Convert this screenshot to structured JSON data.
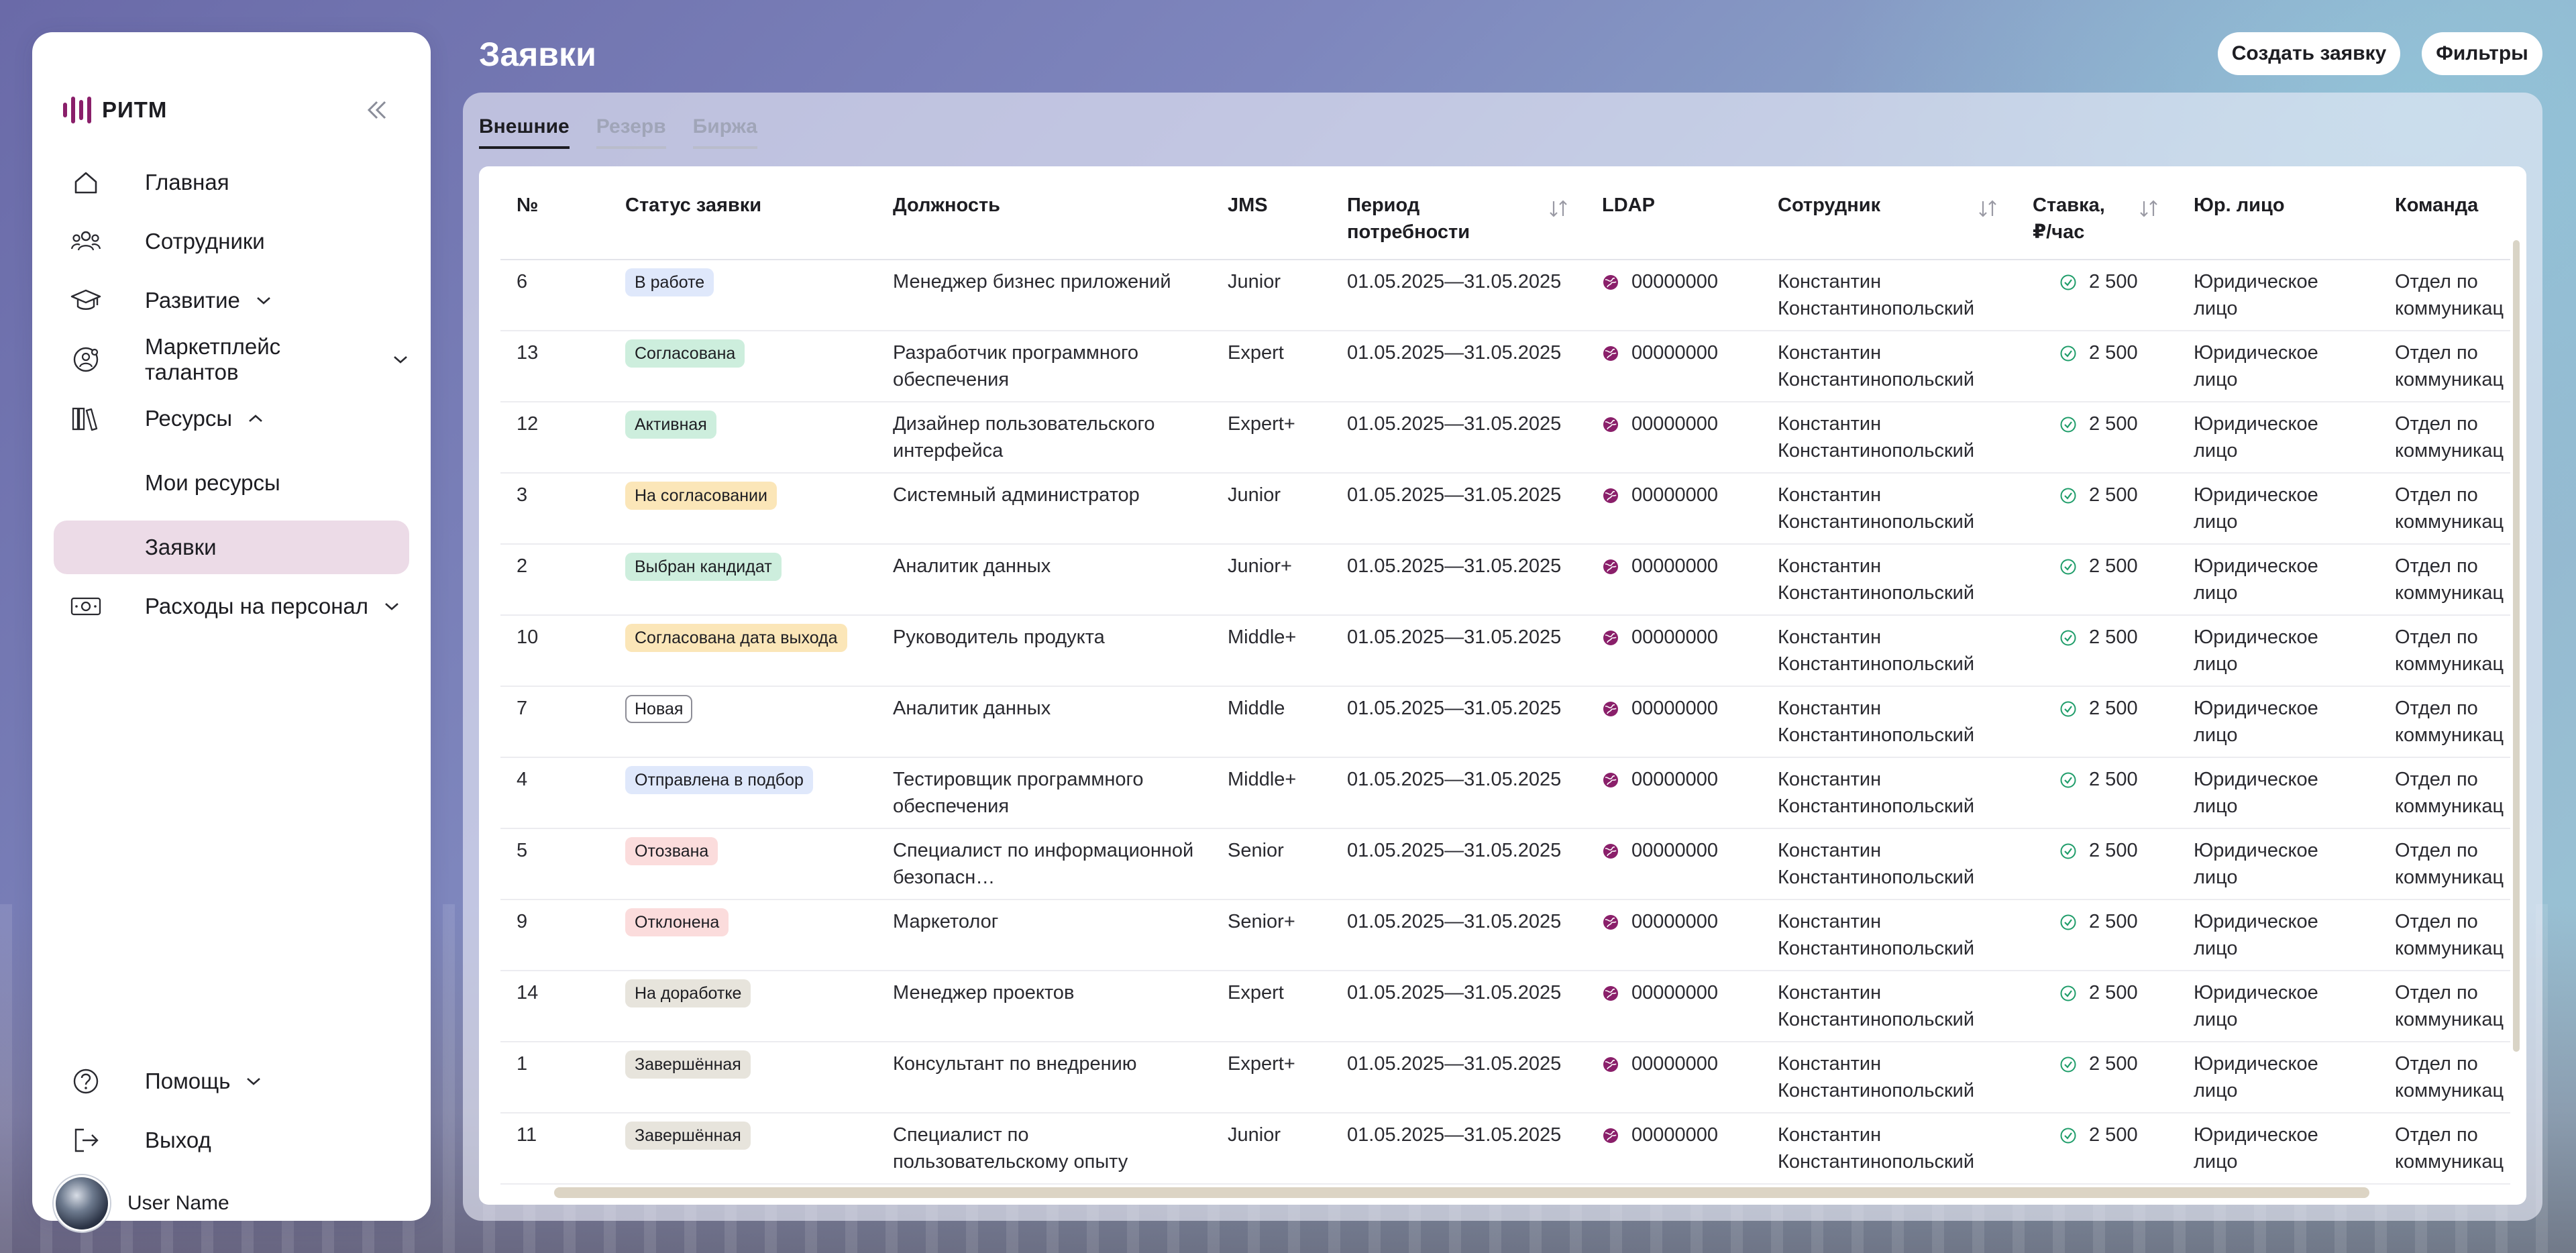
{
  "app": {
    "logo_text": "РИТМ"
  },
  "sidebar": {
    "items": [
      {
        "label": "Главная",
        "icon": "home-icon"
      },
      {
        "label": "Сотрудники",
        "icon": "people-icon"
      },
      {
        "label": "Развитие",
        "icon": "graduation-cap-icon"
      },
      {
        "label": "Маркетплейс талантов",
        "icon": "talent-search-icon"
      },
      {
        "label": "Ресурсы",
        "icon": "books-icon"
      },
      {
        "label": "Мои ресурсы"
      },
      {
        "label": "Заявки"
      },
      {
        "label": "Расходы на персонал",
        "icon": "money-icon"
      }
    ],
    "help_label": "Помощь",
    "logout_label": "Выход",
    "user_name": "User Name"
  },
  "header": {
    "title": "Заявки",
    "create_label": "Создать заявку",
    "filters_label": "Фильтры"
  },
  "tabs": [
    "Внешние",
    "Резерв",
    "Биржа"
  ],
  "table": {
    "columns": [
      "№",
      "Статус заявки",
      "Должность",
      "JMS",
      "Период потребности",
      "LDAP",
      "Сотрудник",
      "Ставка, ₽/час",
      "Юр. лицо",
      "Команда"
    ],
    "rows": [
      {
        "n": "6",
        "status": "В работе",
        "position": "Менеджер бизнес приложений",
        "jms": "Junior",
        "period": "01.05.2025—31.05.2025",
        "ldap": "00000000",
        "employee": "Константин Константинопольский",
        "rate": "2 500",
        "legal": "Юридическое лицо",
        "team": "Отдел по коммуникациям"
      },
      {
        "n": "13",
        "status": "Согласована",
        "position": "Разработчик программного обеспечения",
        "jms": "Expert",
        "period": "01.05.2025—31.05.2025",
        "ldap": "00000000",
        "employee": "Константин Константинопольский",
        "rate": "2 500",
        "legal": "Юридическое лицо",
        "team": "Отдел по коммуникациям"
      },
      {
        "n": "12",
        "status": "Активная",
        "position": "Дизайнер пользовательского интерфейса",
        "jms": "Expert+",
        "period": "01.05.2025—31.05.2025",
        "ldap": "00000000",
        "employee": "Константин Константинопольский",
        "rate": "2 500",
        "legal": "Юридическое лицо",
        "team": "Отдел по коммуникациям"
      },
      {
        "n": "3",
        "status": "На согласовании",
        "position": "Системный администратор",
        "jms": "Junior",
        "period": "01.05.2025—31.05.2025",
        "ldap": "00000000",
        "employee": "Константин Константинопольский",
        "rate": "2 500",
        "legal": "Юридическое лицо",
        "team": "Отдел по коммуникациям"
      },
      {
        "n": "2",
        "status": "Выбран кандидат",
        "position": "Аналитик данных",
        "jms": "Junior+",
        "period": "01.05.2025—31.05.2025",
        "ldap": "00000000",
        "employee": "Константин Константинопольский",
        "rate": "2 500",
        "legal": "Юридическое лицо",
        "team": "Отдел по коммуникациям"
      },
      {
        "n": "10",
        "status": "Согласована дата выхода",
        "position": "Руководитель продукта",
        "jms": "Middle+",
        "period": "01.05.2025—31.05.2025",
        "ldap": "00000000",
        "employee": "Константин Константинопольский",
        "rate": "2 500",
        "legal": "Юридическое лицо",
        "team": "Отдел по коммуникациям"
      },
      {
        "n": "7",
        "status": "Новая",
        "position": "Аналитик данных",
        "jms": "Middle",
        "period": "01.05.2025—31.05.2025",
        "ldap": "00000000",
        "employee": "Константин Константинопольский",
        "rate": "2 500",
        "legal": "Юридическое лицо",
        "team": "Отдел по коммуникациям"
      },
      {
        "n": "4",
        "status": "Отправлена в подбор",
        "position": "Тестировщик программного обеспечения",
        "jms": "Middle+",
        "period": "01.05.2025—31.05.2025",
        "ldap": "00000000",
        "employee": "Константин Константинопольский",
        "rate": "2 500",
        "legal": "Юридическое лицо",
        "team": "Отдел по коммуникациям"
      },
      {
        "n": "5",
        "status": "Отозвана",
        "position": "Специалист по информационной безопасн…",
        "jms": "Senior",
        "period": "01.05.2025—31.05.2025",
        "ldap": "00000000",
        "employee": "Константин Константинопольский",
        "rate": "2 500",
        "legal": "Юридическое лицо",
        "team": "Отдел по коммуникациям"
      },
      {
        "n": "9",
        "status": "Отклонена",
        "position": "Маркетолог",
        "jms": "Senior+",
        "period": "01.05.2025—31.05.2025",
        "ldap": "00000000",
        "employee": "Константин Константинопольский",
        "rate": "2 500",
        "legal": "Юридическое лицо",
        "team": "Отдел по коммуникациям"
      },
      {
        "n": "14",
        "status": "На доработке",
        "position": "Менеджер проектов",
        "jms": "Expert",
        "period": "01.05.2025—31.05.2025",
        "ldap": "00000000",
        "employee": "Константин Константинопольский",
        "rate": "2 500",
        "legal": "Юридическое лицо",
        "team": "Отдел по коммуникациям"
      },
      {
        "n": "1",
        "status": "Завершённая",
        "position": "Консультант по внедрению",
        "jms": "Expert+",
        "period": "01.05.2025—31.05.2025",
        "ldap": "00000000",
        "employee": "Константин Константинопольский",
        "rate": "2 500",
        "legal": "Юридическое лицо",
        "team": "Отдел по коммуникациям"
      },
      {
        "n": "11",
        "status": "Завершённая",
        "position": "Специалист по пользовательскому опыту",
        "jms": "Junior",
        "period": "01.05.2025—31.05.2025",
        "ldap": "00000000",
        "employee": "Константин Константинопольский",
        "rate": "2 500",
        "legal": "Юридическое лицо",
        "team": "Отдел по коммуникациям"
      }
    ]
  },
  "status_colors": {
    "В работе": "#dfe8fb",
    "Согласована": "#cdeedd",
    "Активная": "#cdeedd",
    "На согласовании": "#fbe6b8",
    "Выбран кандидат": "#cdeedd",
    "Согласована дата выхода": "#fbe6b8",
    "Новая": "#ffffff",
    "Отправлена в подбор": "#dfe8fb",
    "Отозвана": "#fbdcdc",
    "Отклонена": "#fbdcdc",
    "На доработке": "#e7e4dc",
    "Завершённая": "#e7e4dc"
  },
  "colors": {
    "brand": "#8a1f6a",
    "active_nav": "#ecdbe7",
    "rate_ok": "#1f9d6a"
  }
}
